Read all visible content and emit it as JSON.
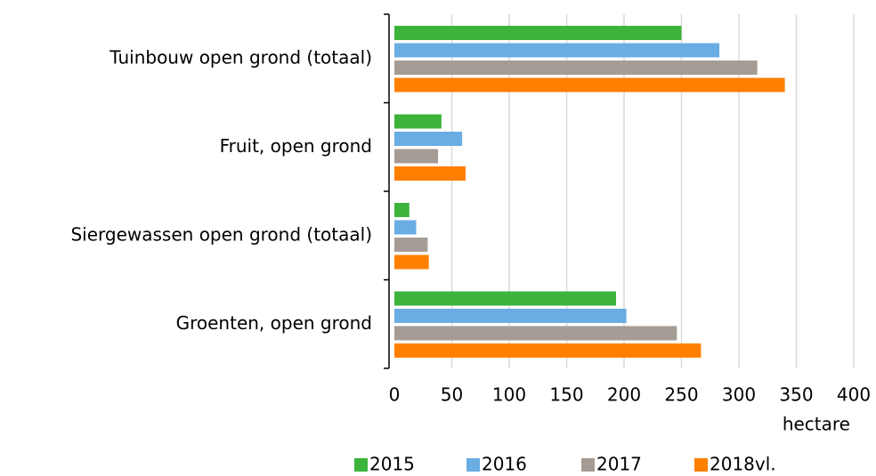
{
  "chart_data": {
    "type": "hbar",
    "categories": [
      "Tuinbouw open grond (totaal)",
      "Fruit, open grond",
      "Siergewassen open grond (totaal)",
      "Groenten, open grond"
    ],
    "series": [
      {
        "name": "2015",
        "color": "#3cb43c",
        "values": [
          250,
          41,
          13,
          193
        ]
      },
      {
        "name": "2016",
        "color": "#6aade4",
        "values": [
          283,
          59,
          19,
          202
        ]
      },
      {
        "name": "2017",
        "color": "#a59d95",
        "values": [
          316,
          38,
          29,
          246
        ]
      },
      {
        "name": "2018vl.",
        "color": "#ff7f00",
        "values": [
          340,
          62,
          30,
          267
        ]
      }
    ],
    "x_label": "hectare",
    "xlim": [
      0,
      400
    ],
    "xticks": [
      0,
      50,
      100,
      150,
      200,
      250,
      300,
      350,
      400
    ],
    "grid": true,
    "legend": "bottom"
  }
}
